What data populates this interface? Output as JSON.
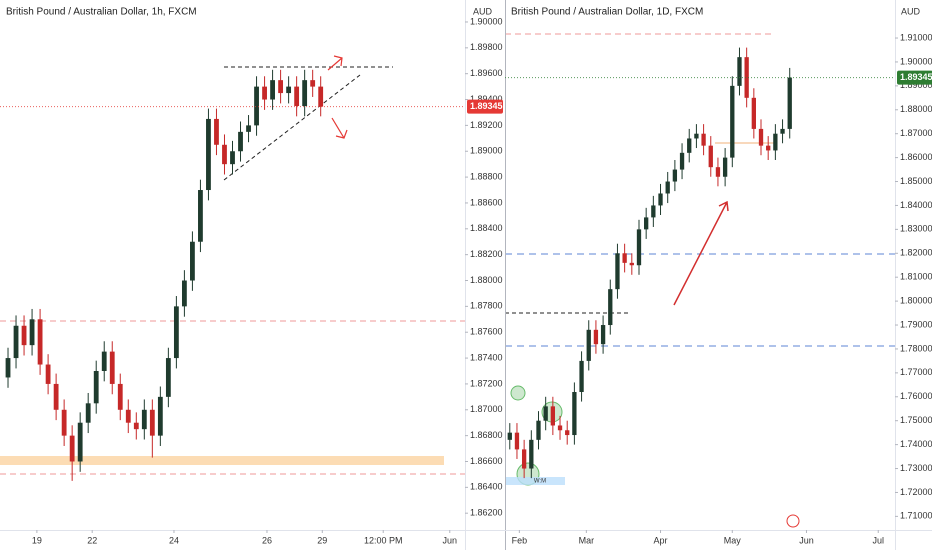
{
  "chart_data": [
    {
      "type": "candlestick",
      "title": "British Pound / Australian Dollar, 1h, FXCM",
      "y_axis_label": "AUD",
      "up_color": "#1f3b2e",
      "down_color": "#c62828",
      "last_price": 1.89345,
      "last_price_color": "#e53935",
      "grid": false,
      "x": [
        1,
        2,
        3,
        4,
        5,
        6,
        7,
        8,
        9,
        10,
        11,
        12,
        13,
        14,
        15,
        16,
        17,
        18,
        19,
        20,
        21,
        22,
        23,
        24,
        25,
        26,
        27,
        28,
        29,
        30,
        31,
        32,
        33,
        34,
        35,
        36,
        37,
        38,
        39,
        40
      ],
      "open": [
        1.8725,
        1.874,
        1.8765,
        1.875,
        1.877,
        1.8735,
        1.872,
        1.87,
        1.868,
        1.866,
        1.869,
        1.8705,
        1.873,
        1.8745,
        1.872,
        1.87,
        1.869,
        1.8685,
        1.87,
        1.868,
        1.871,
        1.874,
        1.878,
        1.88,
        1.883,
        1.887,
        1.8925,
        1.8905,
        1.889,
        1.89,
        1.8915,
        1.892,
        1.895,
        1.894,
        1.8955,
        1.8945,
        1.895,
        1.8935,
        1.8955,
        1.895
      ],
      "high": [
        1.8748,
        1.8773,
        1.8773,
        1.8778,
        1.8778,
        1.8743,
        1.8728,
        1.8708,
        1.8688,
        1.8698,
        1.8713,
        1.8738,
        1.8753,
        1.8753,
        1.8728,
        1.8708,
        1.8698,
        1.8708,
        1.8708,
        1.8718,
        1.8748,
        1.8788,
        1.8808,
        1.8838,
        1.8878,
        1.8933,
        1.8933,
        1.8913,
        1.8908,
        1.8923,
        1.8928,
        1.8958,
        1.8958,
        1.8963,
        1.8963,
        1.8958,
        1.8958,
        1.8963,
        1.8963,
        1.8958
      ],
      "low": [
        1.8717,
        1.8732,
        1.8742,
        1.8742,
        1.8727,
        1.8712,
        1.8692,
        1.8672,
        1.8645,
        1.8652,
        1.8682,
        1.8697,
        1.8722,
        1.8712,
        1.8692,
        1.8682,
        1.8677,
        1.8677,
        1.8663,
        1.8672,
        1.8702,
        1.8732,
        1.8772,
        1.8792,
        1.8822,
        1.8862,
        1.8897,
        1.8882,
        1.8882,
        1.8892,
        1.8907,
        1.8912,
        1.8932,
        1.8932,
        1.8937,
        1.8937,
        1.8927,
        1.8927,
        1.8942,
        1.8927
      ],
      "close": [
        1.874,
        1.8765,
        1.875,
        1.877,
        1.8735,
        1.872,
        1.87,
        1.868,
        1.866,
        1.869,
        1.8705,
        1.873,
        1.8745,
        1.872,
        1.87,
        1.869,
        1.8685,
        1.87,
        1.868,
        1.871,
        1.874,
        1.878,
        1.88,
        1.883,
        1.887,
        1.8925,
        1.8905,
        1.889,
        1.89,
        1.8915,
        1.892,
        1.895,
        1.894,
        1.8955,
        1.8945,
        1.895,
        1.8935,
        1.8955,
        1.895,
        1.89345
      ],
      "xlim": [
        0,
        58
      ],
      "ylim": [
        1.8607,
        1.9017
      ],
      "xticks": [
        {
          "value": 4.6,
          "label": "19"
        },
        {
          "value": 11.5,
          "label": "22"
        },
        {
          "value": 21.7,
          "label": "24"
        },
        {
          "value": 33.3,
          "label": "26"
        },
        {
          "value": 40.2,
          "label": "29"
        },
        {
          "value": 47.8,
          "label": "12:00 PM"
        },
        {
          "value": 56.1,
          "label": "Jun"
        }
      ],
      "yticks": [
        {
          "value": 1.862,
          "label": "1.86200"
        },
        {
          "value": 1.864,
          "label": "1.86400"
        },
        {
          "value": 1.866,
          "label": "1.86600"
        },
        {
          "value": 1.868,
          "label": "1.86800"
        },
        {
          "value": 1.87,
          "label": "1.87000"
        },
        {
          "value": 1.872,
          "label": "1.87200"
        },
        {
          "value": 1.874,
          "label": "1.87400"
        },
        {
          "value": 1.876,
          "label": "1.87600"
        },
        {
          "value": 1.878,
          "label": "1.87800"
        },
        {
          "value": 1.88,
          "label": "1.88000"
        },
        {
          "value": 1.882,
          "label": "1.88200"
        },
        {
          "value": 1.884,
          "label": "1.88400"
        },
        {
          "value": 1.886,
          "label": "1.88600"
        },
        {
          "value": 1.888,
          "label": "1.88800"
        },
        {
          "value": 1.89,
          "label": "1.89000"
        },
        {
          "value": 1.892,
          "label": "1.89200"
        },
        {
          "value": 1.894,
          "label": "1.89400"
        },
        {
          "value": 1.896,
          "label": "1.89600"
        },
        {
          "value": 1.898,
          "label": "1.89800"
        },
        {
          "value": 1.9,
          "label": "1.90000"
        }
      ]
    },
    {
      "type": "candlestick",
      "title": "British Pound / Australian Dollar, 1D, FXCM",
      "y_axis_label": "AUD",
      "annotations": [
        "W:M"
      ],
      "up_color": "#1f3b2e",
      "down_color": "#c62828",
      "last_price": 1.89345,
      "last_price_color": "#2e7d32",
      "grid": false,
      "x": [
        28,
        31,
        34,
        37,
        40,
        43,
        46,
        49,
        52,
        55,
        58,
        61,
        64,
        67,
        70,
        73,
        76,
        79,
        82,
        85,
        88,
        91,
        94,
        97,
        100,
        103,
        106,
        109,
        112,
        115,
        118,
        121,
        124,
        127,
        130,
        133,
        136,
        139,
        142,
        145
      ],
      "open": [
        1.742,
        1.745,
        1.738,
        1.73,
        1.742,
        1.75,
        1.756,
        1.748,
        1.746,
        1.744,
        1.762,
        1.775,
        1.788,
        1.782,
        1.79,
        1.805,
        1.82,
        1.816,
        1.815,
        1.83,
        1.835,
        1.84,
        1.845,
        1.85,
        1.855,
        1.862,
        1.868,
        1.87,
        1.865,
        1.856,
        1.852,
        1.86,
        1.89,
        1.902,
        1.885,
        1.872,
        1.865,
        1.863,
        1.87,
        1.872
      ],
      "high": [
        1.749,
        1.749,
        1.742,
        1.746,
        1.754,
        1.76,
        1.76,
        1.752,
        1.75,
        1.766,
        1.779,
        1.792,
        1.792,
        1.794,
        1.809,
        1.824,
        1.824,
        1.82,
        1.834,
        1.839,
        1.844,
        1.849,
        1.854,
        1.859,
        1.866,
        1.872,
        1.874,
        1.874,
        1.869,
        1.86,
        1.864,
        1.894,
        1.906,
        1.906,
        1.889,
        1.876,
        1.869,
        1.874,
        1.876,
        1.8975
      ],
      "low": [
        1.738,
        1.734,
        1.726,
        1.726,
        1.738,
        1.746,
        1.744,
        1.742,
        1.74,
        1.74,
        1.758,
        1.771,
        1.778,
        1.778,
        1.786,
        1.801,
        1.812,
        1.811,
        1.811,
        1.826,
        1.831,
        1.836,
        1.841,
        1.846,
        1.851,
        1.858,
        1.864,
        1.861,
        1.852,
        1.848,
        1.848,
        1.856,
        1.886,
        1.881,
        1.868,
        1.861,
        1.859,
        1.859,
        1.866,
        1.868
      ],
      "close": [
        1.745,
        1.738,
        1.73,
        1.742,
        1.75,
        1.756,
        1.748,
        1.746,
        1.744,
        1.762,
        1.775,
        1.788,
        1.782,
        1.79,
        1.805,
        1.82,
        1.816,
        1.815,
        1.83,
        1.835,
        1.84,
        1.845,
        1.85,
        1.855,
        1.862,
        1.868,
        1.87,
        1.865,
        1.856,
        1.852,
        1.86,
        1.89,
        1.902,
        1.885,
        1.872,
        1.865,
        1.863,
        1.87,
        1.872,
        1.89345
      ],
      "xlim": [
        26,
        189
      ],
      "ylim": [
        1.7043,
        1.9259
      ],
      "xticks": [
        {
          "value": 32,
          "label": "Feb"
        },
        {
          "value": 60,
          "label": "Mar"
        },
        {
          "value": 91,
          "label": "Apr"
        },
        {
          "value": 121,
          "label": "May"
        },
        {
          "value": 152,
          "label": "Jun"
        },
        {
          "value": 182,
          "label": "Jul"
        }
      ],
      "yticks": [
        {
          "value": 1.71,
          "label": "1.71000"
        },
        {
          "value": 1.72,
          "label": "1.72000"
        },
        {
          "value": 1.73,
          "label": "1.73000"
        },
        {
          "value": 1.74,
          "label": "1.74000"
        },
        {
          "value": 1.75,
          "label": "1.75000"
        },
        {
          "value": 1.76,
          "label": "1.76000"
        },
        {
          "value": 1.77,
          "label": "1.77000"
        },
        {
          "value": 1.78,
          "label": "1.78000"
        },
        {
          "value": 1.79,
          "label": "1.79000"
        },
        {
          "value": 1.8,
          "label": "1.80000"
        },
        {
          "value": 1.81,
          "label": "1.81000"
        },
        {
          "value": 1.82,
          "label": "1.82000"
        },
        {
          "value": 1.83,
          "label": "1.83000"
        },
        {
          "value": 1.84,
          "label": "1.84000"
        },
        {
          "value": 1.85,
          "label": "1.85000"
        },
        {
          "value": 1.86,
          "label": "1.86000"
        },
        {
          "value": 1.87,
          "label": "1.87000"
        },
        {
          "value": 1.88,
          "label": "1.88000"
        },
        {
          "value": 1.89,
          "label": "1.89000"
        },
        {
          "value": 1.9,
          "label": "1.90000"
        },
        {
          "value": 1.91,
          "label": "1.91000"
        }
      ]
    }
  ]
}
